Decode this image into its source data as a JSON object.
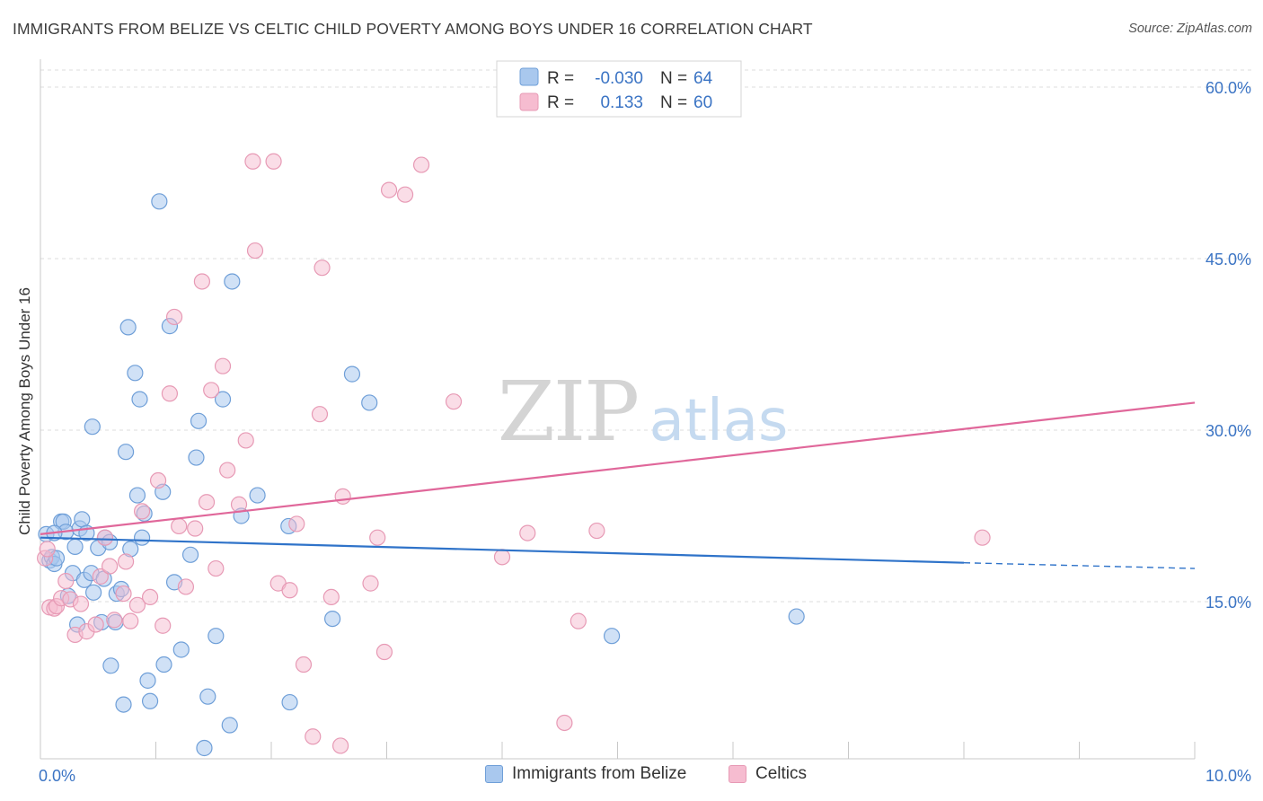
{
  "title": "IMMIGRANTS FROM BELIZE VS CELTIC CHILD POVERTY AMONG BOYS UNDER 16 CORRELATION CHART",
  "source": "Source: ZipAtlas.com",
  "watermark": {
    "zip": "ZIP",
    "atlas": "atlas"
  },
  "colors": {
    "blue_fill": "#a9c8ee",
    "blue_stroke": "#6f9fd8",
    "blue_line": "#2f73c9",
    "pink_fill": "#f6bcd0",
    "pink_stroke": "#e79ab5",
    "pink_line": "#e0679a",
    "axis_label": "#3b74c4",
    "grid": "#dcdcdc"
  },
  "legend": {
    "rows": [
      {
        "r_label": "R =",
        "r_value": "-0.030",
        "n_label": "N =",
        "n_value": "64"
      },
      {
        "r_label": "R =",
        "r_value": "0.133",
        "n_label": "N =",
        "n_value": "60"
      }
    ]
  },
  "bottom_legend": [
    "Immigrants from Belize",
    "Celtics"
  ],
  "chart_data": {
    "type": "scatter",
    "title": "IMMIGRANTS FROM BELIZE VS CELTIC CHILD POVERTY AMONG BOYS UNDER 16 CORRELATION CHART",
    "xlabel": "",
    "ylabel": "Child Poverty Among Boys Under 16",
    "xlim": [
      0,
      10
    ],
    "ylim": [
      0,
      60
    ],
    "x_tick_labels": [
      "0.0%",
      "10.0%"
    ],
    "y_tick_labels": [
      "15.0%",
      "30.0%",
      "45.0%",
      "60.0%"
    ],
    "y_ticks": [
      15,
      30,
      45,
      60
    ],
    "grid": true,
    "legend_position": "top-center",
    "series": [
      {
        "name": "Immigrants from Belize",
        "r": -0.03,
        "n": 64,
        "trend": {
          "x": [
            0,
            8.0
          ],
          "y": [
            20.6,
            18.4
          ],
          "dashed_to_x": 10,
          "dashed_y_end": 17.9
        },
        "points": [
          [
            0.05,
            20.9
          ],
          [
            0.08,
            18.6
          ],
          [
            0.1,
            18.9
          ],
          [
            0.12,
            18.3
          ],
          [
            0.14,
            18.8
          ],
          [
            0.18,
            22.0
          ],
          [
            0.2,
            22.0
          ],
          [
            0.22,
            21.1
          ],
          [
            0.28,
            17.5
          ],
          [
            0.3,
            19.8
          ],
          [
            0.32,
            13.0
          ],
          [
            0.34,
            21.4
          ],
          [
            0.36,
            22.2
          ],
          [
            0.38,
            16.9
          ],
          [
            0.4,
            21.0
          ],
          [
            0.44,
            17.5
          ],
          [
            0.46,
            15.8
          ],
          [
            0.5,
            19.7
          ],
          [
            0.53,
            13.2
          ],
          [
            0.55,
            17.0
          ],
          [
            0.56,
            20.6
          ],
          [
            0.6,
            20.2
          ],
          [
            0.61,
            9.4
          ],
          [
            0.65,
            13.2
          ],
          [
            0.66,
            15.7
          ],
          [
            0.7,
            16.1
          ],
          [
            0.72,
            6.0
          ],
          [
            0.74,
            28.1
          ],
          [
            0.76,
            39.0
          ],
          [
            0.78,
            19.6
          ],
          [
            0.82,
            35.0
          ],
          [
            0.84,
            24.3
          ],
          [
            0.86,
            32.7
          ],
          [
            0.88,
            20.6
          ],
          [
            0.9,
            22.7
          ],
          [
            0.93,
            8.1
          ],
          [
            0.95,
            6.3
          ],
          [
            1.03,
            50.0
          ],
          [
            1.06,
            24.6
          ],
          [
            1.07,
            9.5
          ],
          [
            1.12,
            39.1
          ],
          [
            1.16,
            16.7
          ],
          [
            1.22,
            10.8
          ],
          [
            1.3,
            19.1
          ],
          [
            1.35,
            27.6
          ],
          [
            1.37,
            30.8
          ],
          [
            1.42,
            2.2
          ],
          [
            1.45,
            6.7
          ],
          [
            1.52,
            12.0
          ],
          [
            1.58,
            32.7
          ],
          [
            1.64,
            4.2
          ],
          [
            1.66,
            43.0
          ],
          [
            1.74,
            22.5
          ],
          [
            1.88,
            24.3
          ],
          [
            2.15,
            21.6
          ],
          [
            2.16,
            6.2
          ],
          [
            2.53,
            13.5
          ],
          [
            2.7,
            34.9
          ],
          [
            2.85,
            32.4
          ],
          [
            4.95,
            12.0
          ],
          [
            6.55,
            13.7
          ],
          [
            0.45,
            30.3
          ],
          [
            0.24,
            15.5
          ],
          [
            0.12,
            21.0
          ]
        ]
      },
      {
        "name": "Celtics",
        "r": 0.133,
        "n": 60,
        "trend": {
          "x": [
            0,
            10
          ],
          "y": [
            20.9,
            32.4
          ]
        },
        "points": [
          [
            0.04,
            18.8
          ],
          [
            0.06,
            19.6
          ],
          [
            0.08,
            14.5
          ],
          [
            0.12,
            14.4
          ],
          [
            0.14,
            14.6
          ],
          [
            0.18,
            15.3
          ],
          [
            0.22,
            16.8
          ],
          [
            0.26,
            15.2
          ],
          [
            0.3,
            12.1
          ],
          [
            0.35,
            14.8
          ],
          [
            0.4,
            12.4
          ],
          [
            0.48,
            13.0
          ],
          [
            0.52,
            17.2
          ],
          [
            0.56,
            20.6
          ],
          [
            0.6,
            18.1
          ],
          [
            0.64,
            13.4
          ],
          [
            0.72,
            15.7
          ],
          [
            0.74,
            18.5
          ],
          [
            0.78,
            13.3
          ],
          [
            0.84,
            14.7
          ],
          [
            0.88,
            22.9
          ],
          [
            0.95,
            15.4
          ],
          [
            1.02,
            25.6
          ],
          [
            1.06,
            12.9
          ],
          [
            1.12,
            33.2
          ],
          [
            1.16,
            39.9
          ],
          [
            1.2,
            21.6
          ],
          [
            1.26,
            16.3
          ],
          [
            1.34,
            21.4
          ],
          [
            1.4,
            43.0
          ],
          [
            1.44,
            23.7
          ],
          [
            1.48,
            33.5
          ],
          [
            1.52,
            17.9
          ],
          [
            1.58,
            35.6
          ],
          [
            1.62,
            26.5
          ],
          [
            1.72,
            23.5
          ],
          [
            1.78,
            29.1
          ],
          [
            1.84,
            53.5
          ],
          [
            1.86,
            45.7
          ],
          [
            2.02,
            53.5
          ],
          [
            2.06,
            16.6
          ],
          [
            2.16,
            16.0
          ],
          [
            2.22,
            21.8
          ],
          [
            2.28,
            9.5
          ],
          [
            2.36,
            3.2
          ],
          [
            2.42,
            31.4
          ],
          [
            2.44,
            44.2
          ],
          [
            2.52,
            15.4
          ],
          [
            2.6,
            2.4
          ],
          [
            2.62,
            24.2
          ],
          [
            2.86,
            16.6
          ],
          [
            2.92,
            20.6
          ],
          [
            2.98,
            10.6
          ],
          [
            3.02,
            51.0
          ],
          [
            3.16,
            50.6
          ],
          [
            3.3,
            53.2
          ],
          [
            3.58,
            32.5
          ],
          [
            4.0,
            18.9
          ],
          [
            4.22,
            21.0
          ],
          [
            4.54,
            4.4
          ]
        ],
        "extra_points": [
          [
            4.66,
            13.3
          ],
          [
            4.82,
            21.2
          ],
          [
            8.16,
            20.6
          ]
        ]
      }
    ]
  }
}
